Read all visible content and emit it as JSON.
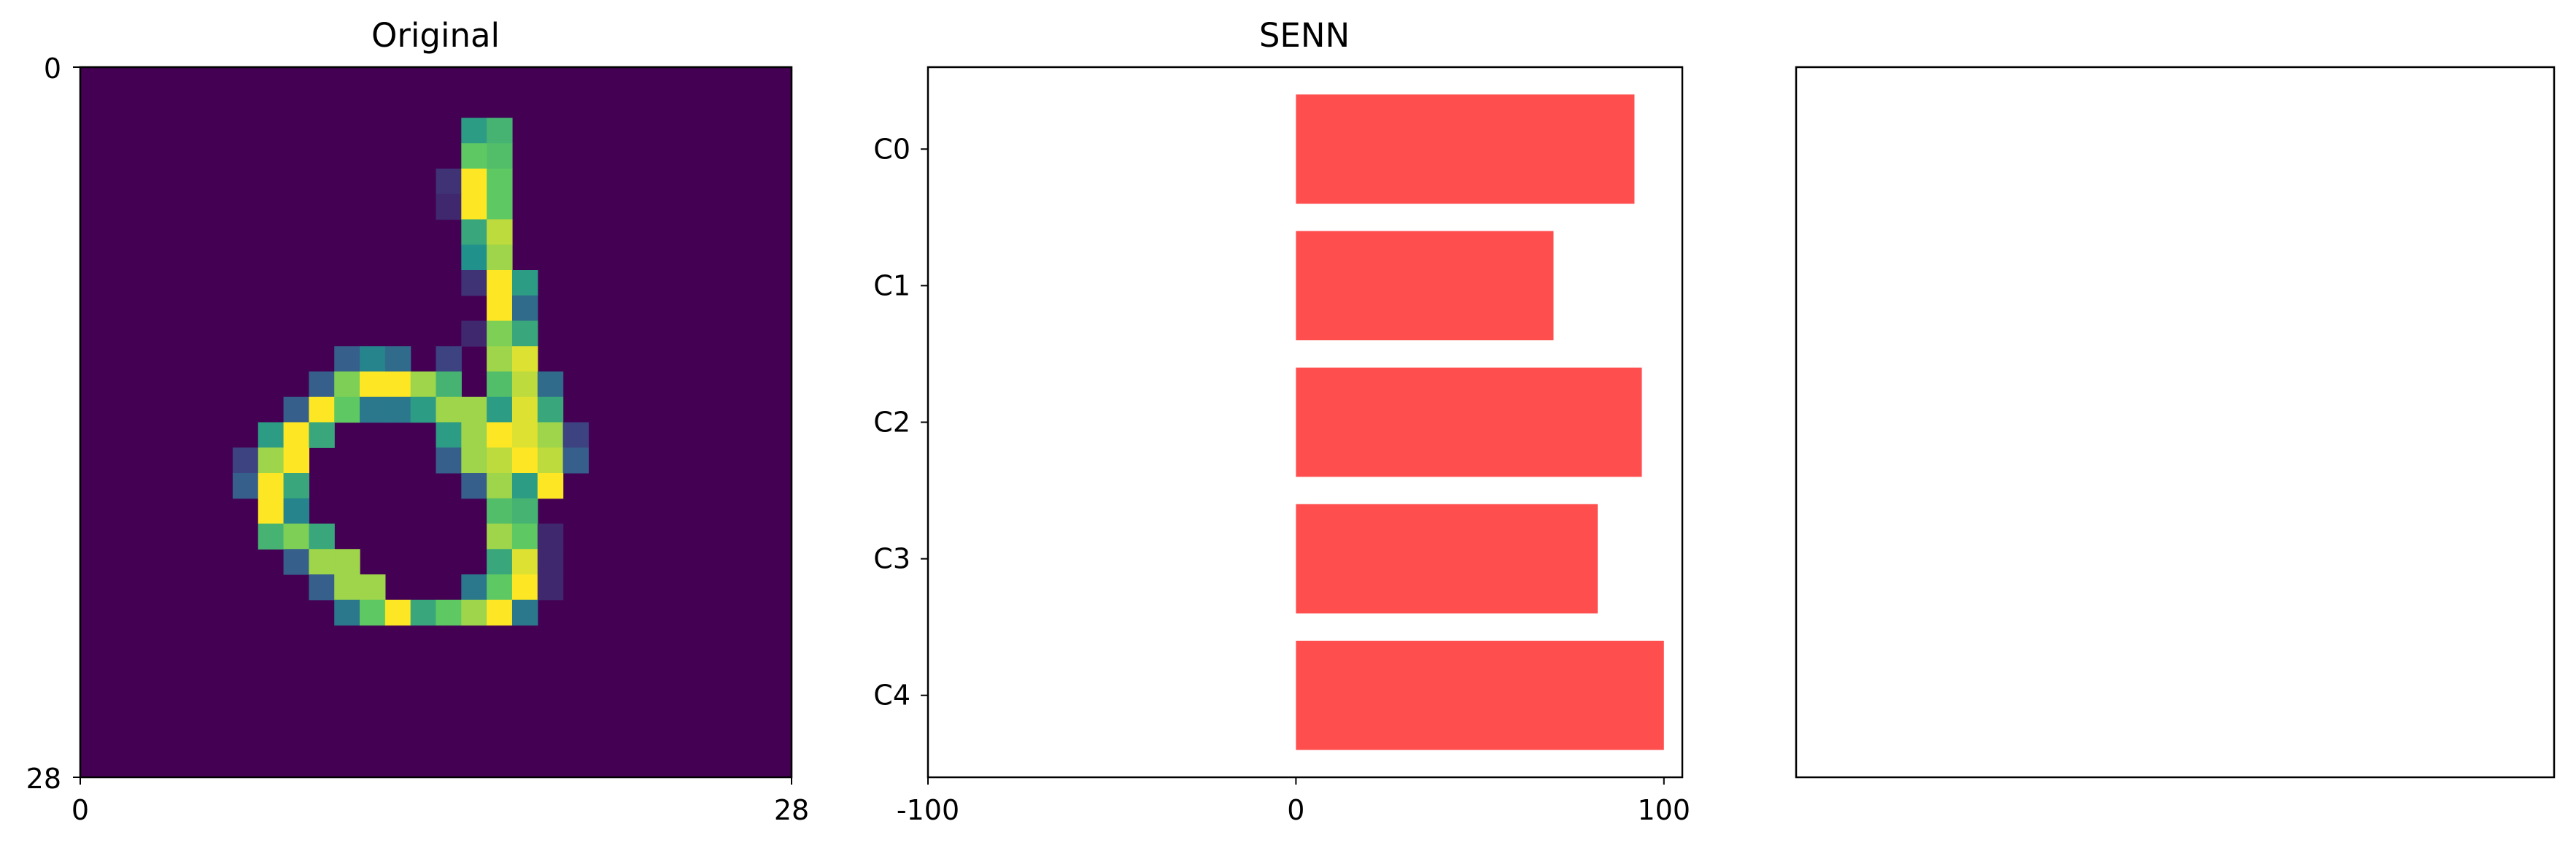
{
  "chart_data": [
    {
      "type": "heatmap",
      "title": "Original",
      "colormap": "viridis",
      "grid_size": 28,
      "x_ticks": [
        "0",
        "28"
      ],
      "y_ticks": [
        "0",
        "28"
      ],
      "xlim": [
        0,
        28
      ],
      "ylim": [
        28,
        0
      ],
      "pixels": [
        {
          "row": 2,
          "col": 15,
          "v": 0.55
        },
        {
          "row": 2,
          "col": 16,
          "v": 0.65
        },
        {
          "row": 3,
          "col": 15,
          "v": 0.75
        },
        {
          "row": 3,
          "col": 16,
          "v": 0.7
        },
        {
          "row": 4,
          "col": 14,
          "v": 0.15
        },
        {
          "row": 4,
          "col": 15,
          "v": 1.0
        },
        {
          "row": 4,
          "col": 16,
          "v": 0.75
        },
        {
          "row": 5,
          "col": 14,
          "v": 0.12
        },
        {
          "row": 5,
          "col": 15,
          "v": 1.0
        },
        {
          "row": 5,
          "col": 16,
          "v": 0.75
        },
        {
          "row": 6,
          "col": 15,
          "v": 0.6
        },
        {
          "row": 6,
          "col": 16,
          "v": 0.9
        },
        {
          "row": 7,
          "col": 15,
          "v": 0.5
        },
        {
          "row": 7,
          "col": 16,
          "v": 0.85
        },
        {
          "row": 8,
          "col": 15,
          "v": 0.15
        },
        {
          "row": 8,
          "col": 16,
          "v": 1.0
        },
        {
          "row": 8,
          "col": 17,
          "v": 0.55
        },
        {
          "row": 9,
          "col": 16,
          "v": 1.0
        },
        {
          "row": 9,
          "col": 17,
          "v": 0.35
        },
        {
          "row": 10,
          "col": 15,
          "v": 0.12
        },
        {
          "row": 10,
          "col": 16,
          "v": 0.8
        },
        {
          "row": 10,
          "col": 17,
          "v": 0.6
        },
        {
          "row": 11,
          "col": 10,
          "v": 0.3
        },
        {
          "row": 11,
          "col": 11,
          "v": 0.45
        },
        {
          "row": 11,
          "col": 12,
          "v": 0.35
        },
        {
          "row": 11,
          "col": 14,
          "v": 0.2
        },
        {
          "row": 11,
          "col": 16,
          "v": 0.85
        },
        {
          "row": 11,
          "col": 17,
          "v": 0.95
        },
        {
          "row": 12,
          "col": 9,
          "v": 0.3
        },
        {
          "row": 12,
          "col": 10,
          "v": 0.8
        },
        {
          "row": 12,
          "col": 11,
          "v": 1.0
        },
        {
          "row": 12,
          "col": 12,
          "v": 1.0
        },
        {
          "row": 12,
          "col": 13,
          "v": 0.85
        },
        {
          "row": 12,
          "col": 14,
          "v": 0.65
        },
        {
          "row": 12,
          "col": 16,
          "v": 0.7
        },
        {
          "row": 12,
          "col": 17,
          "v": 0.9
        },
        {
          "row": 12,
          "col": 18,
          "v": 0.35
        },
        {
          "row": 13,
          "col": 8,
          "v": 0.3
        },
        {
          "row": 13,
          "col": 9,
          "v": 1.0
        },
        {
          "row": 13,
          "col": 10,
          "v": 0.75
        },
        {
          "row": 13,
          "col": 11,
          "v": 0.4
        },
        {
          "row": 13,
          "col": 12,
          "v": 0.4
        },
        {
          "row": 13,
          "col": 13,
          "v": 0.55
        },
        {
          "row": 13,
          "col": 14,
          "v": 0.85
        },
        {
          "row": 13,
          "col": 15,
          "v": 0.85
        },
        {
          "row": 13,
          "col": 16,
          "v": 0.55
        },
        {
          "row": 13,
          "col": 17,
          "v": 0.95
        },
        {
          "row": 13,
          "col": 18,
          "v": 0.6
        },
        {
          "row": 14,
          "col": 7,
          "v": 0.55
        },
        {
          "row": 14,
          "col": 8,
          "v": 1.0
        },
        {
          "row": 14,
          "col": 9,
          "v": 0.6
        },
        {
          "row": 14,
          "col": 14,
          "v": 0.55
        },
        {
          "row": 14,
          "col": 15,
          "v": 0.85
        },
        {
          "row": 14,
          "col": 16,
          "v": 1.0
        },
        {
          "row": 14,
          "col": 17,
          "v": 0.95
        },
        {
          "row": 14,
          "col": 18,
          "v": 0.85
        },
        {
          "row": 14,
          "col": 19,
          "v": 0.2
        },
        {
          "row": 15,
          "col": 6,
          "v": 0.2
        },
        {
          "row": 15,
          "col": 7,
          "v": 0.85
        },
        {
          "row": 15,
          "col": 8,
          "v": 1.0
        },
        {
          "row": 15,
          "col": 14,
          "v": 0.3
        },
        {
          "row": 15,
          "col": 15,
          "v": 0.85
        },
        {
          "row": 15,
          "col": 16,
          "v": 0.9
        },
        {
          "row": 15,
          "col": 17,
          "v": 1.0
        },
        {
          "row": 15,
          "col": 18,
          "v": 0.9
        },
        {
          "row": 15,
          "col": 19,
          "v": 0.3
        },
        {
          "row": 16,
          "col": 6,
          "v": 0.3
        },
        {
          "row": 16,
          "col": 7,
          "v": 1.0
        },
        {
          "row": 16,
          "col": 8,
          "v": 0.6
        },
        {
          "row": 16,
          "col": 15,
          "v": 0.3
        },
        {
          "row": 16,
          "col": 16,
          "v": 0.85
        },
        {
          "row": 16,
          "col": 17,
          "v": 0.55
        },
        {
          "row": 16,
          "col": 18,
          "v": 1.0
        },
        {
          "row": 17,
          "col": 7,
          "v": 1.0
        },
        {
          "row": 17,
          "col": 8,
          "v": 0.45
        },
        {
          "row": 17,
          "col": 16,
          "v": 0.7
        },
        {
          "row": 17,
          "col": 17,
          "v": 0.65
        },
        {
          "row": 18,
          "col": 7,
          "v": 0.65
        },
        {
          "row": 18,
          "col": 8,
          "v": 0.8
        },
        {
          "row": 18,
          "col": 9,
          "v": 0.6
        },
        {
          "row": 18,
          "col": 16,
          "v": 0.85
        },
        {
          "row": 18,
          "col": 17,
          "v": 0.75
        },
        {
          "row": 18,
          "col": 18,
          "v": 0.12
        },
        {
          "row": 19,
          "col": 8,
          "v": 0.3
        },
        {
          "row": 19,
          "col": 9,
          "v": 0.85
        },
        {
          "row": 19,
          "col": 10,
          "v": 0.85
        },
        {
          "row": 19,
          "col": 16,
          "v": 0.6
        },
        {
          "row": 19,
          "col": 17,
          "v": 0.95
        },
        {
          "row": 19,
          "col": 18,
          "v": 0.12
        },
        {
          "row": 20,
          "col": 9,
          "v": 0.3
        },
        {
          "row": 20,
          "col": 10,
          "v": 0.85
        },
        {
          "row": 20,
          "col": 11,
          "v": 0.85
        },
        {
          "row": 20,
          "col": 15,
          "v": 0.4
        },
        {
          "row": 20,
          "col": 16,
          "v": 0.75
        },
        {
          "row": 20,
          "col": 17,
          "v": 1.0
        },
        {
          "row": 20,
          "col": 18,
          "v": 0.12
        },
        {
          "row": 21,
          "col": 10,
          "v": 0.4
        },
        {
          "row": 21,
          "col": 11,
          "v": 0.75
        },
        {
          "row": 21,
          "col": 12,
          "v": 1.0
        },
        {
          "row": 21,
          "col": 13,
          "v": 0.6
        },
        {
          "row": 21,
          "col": 14,
          "v": 0.75
        },
        {
          "row": 21,
          "col": 15,
          "v": 0.85
        },
        {
          "row": 21,
          "col": 16,
          "v": 1.0
        },
        {
          "row": 21,
          "col": 17,
          "v": 0.4
        }
      ]
    },
    {
      "type": "bar",
      "orientation": "horizontal",
      "title": "SENN",
      "categories": [
        "C0",
        "C1",
        "C2",
        "C3",
        "C4"
      ],
      "values": [
        92,
        70,
        94,
        82,
        100
      ],
      "xlim": [
        -100,
        105
      ],
      "x_ticks": [
        -100,
        0,
        100
      ],
      "color": "#ff4e4e"
    },
    {
      "type": "blank",
      "title": ""
    }
  ]
}
